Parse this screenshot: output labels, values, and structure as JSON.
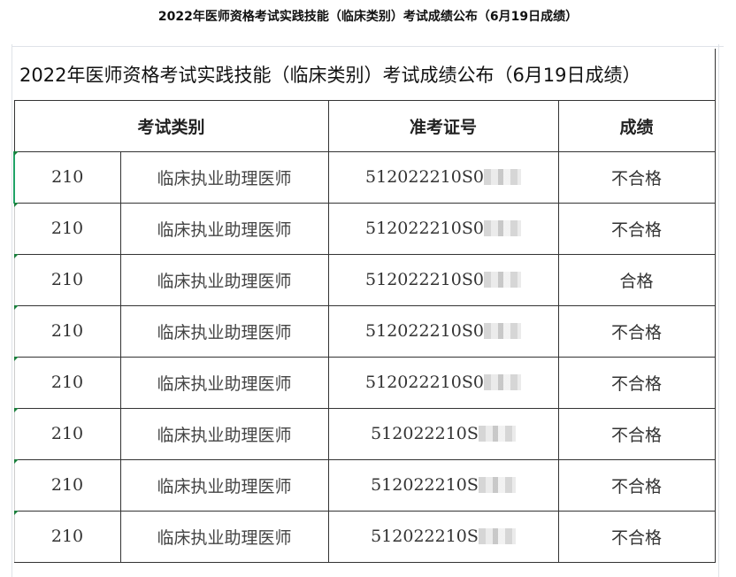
{
  "page_title": "2022年医师资格考试实践技能（临床类别）考试成绩公布（6月19日成绩）",
  "table": {
    "title": "2022年医师资格考试实践技能（临床类别）考试成绩公布（6月19日成绩）",
    "headers": [
      "考试类别",
      "准考证号",
      "成绩"
    ],
    "rows": [
      {
        "code": "210",
        "category": "临床执业助理医师",
        "id": "512022210S0",
        "result": "不合格"
      },
      {
        "code": "210",
        "category": "临床执业助理医师",
        "id": "512022210S0",
        "result": "不合格"
      },
      {
        "code": "210",
        "category": "临床执业助理医师",
        "id": "512022210S0",
        "result": "合格"
      },
      {
        "code": "210",
        "category": "临床执业助理医师",
        "id": "512022210S0",
        "result": "不合格"
      },
      {
        "code": "210",
        "category": "临床执业助理医师",
        "id": "512022210S0",
        "result": "不合格"
      },
      {
        "code": "210",
        "category": "临床执业助理医师",
        "id": "512022210S",
        "result": "不合格"
      },
      {
        "code": "210",
        "category": "临床执业助理医师",
        "id": "512022210S",
        "result": "不合格"
      },
      {
        "code": "210",
        "category": "临床执业助理医师",
        "id": "512022210S",
        "result": "不合格"
      }
    ]
  }
}
